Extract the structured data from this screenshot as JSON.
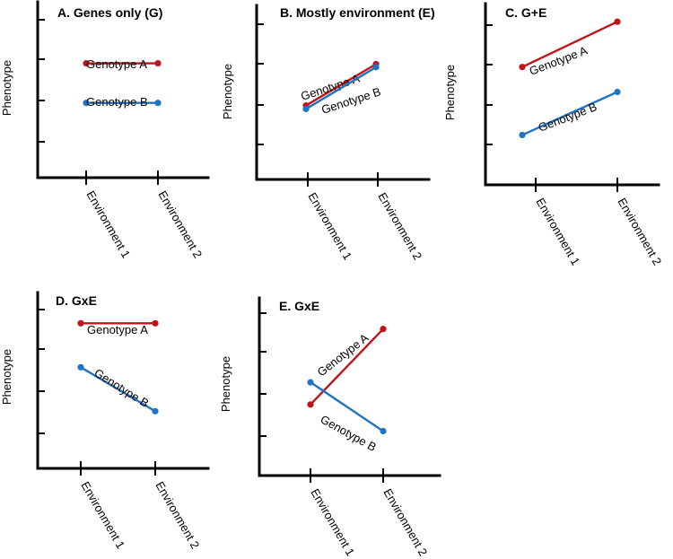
{
  "colors": {
    "genotype_a": "#c0141c",
    "genotype_b": "#1f74c4"
  },
  "chart_data": [
    {
      "type": "line",
      "title": "A. Genes only (G)",
      "xlabel": "",
      "ylabel": "Phenotype",
      "categories": [
        "Environment 1",
        "Environment 2"
      ],
      "ylim": [
        0,
        4
      ],
      "series": [
        {
          "name": "Genotype A",
          "values": [
            2.6,
            2.6
          ]
        },
        {
          "name": "Genotype B",
          "values": [
            1.7,
            1.7
          ]
        }
      ]
    },
    {
      "type": "line",
      "title": "B. Mostly environment (E)",
      "xlabel": "",
      "ylabel": "Phenotype",
      "categories": [
        "Environment 1",
        "Environment 2"
      ],
      "ylim": [
        0,
        4
      ],
      "series": [
        {
          "name": "Genotype A",
          "values": [
            1.7,
            2.65
          ]
        },
        {
          "name": "Genotype B",
          "values": [
            1.62,
            2.58
          ]
        }
      ]
    },
    {
      "type": "line",
      "title": "C. G+E",
      "xlabel": "",
      "ylabel": "Phenotype",
      "categories": [
        "Environment 1",
        "Environment 2"
      ],
      "ylim": [
        0,
        4
      ],
      "series": [
        {
          "name": "Genotype A",
          "values": [
            2.6,
            3.6
          ]
        },
        {
          "name": "Genotype B",
          "values": [
            1.1,
            2.05
          ]
        }
      ]
    },
    {
      "type": "line",
      "title": "D. GxE",
      "xlabel": "",
      "ylabel": "Phenotype",
      "categories": [
        "Environment 1",
        "Environment 2"
      ],
      "ylim": [
        0,
        4
      ],
      "series": [
        {
          "name": "Genotype A",
          "values": [
            3.3,
            3.3
          ]
        },
        {
          "name": "Genotype B",
          "values": [
            2.3,
            1.3
          ]
        }
      ]
    },
    {
      "type": "line",
      "title": "E. GxE",
      "xlabel": "",
      "ylabel": "Phenotype",
      "categories": [
        "Environment 1",
        "Environment 2"
      ],
      "ylim": [
        0,
        4
      ],
      "series": [
        {
          "name": "Genotype A",
          "values": [
            1.6,
            3.3
          ]
        },
        {
          "name": "Genotype B",
          "values": [
            2.1,
            1.0
          ]
        }
      ]
    }
  ]
}
